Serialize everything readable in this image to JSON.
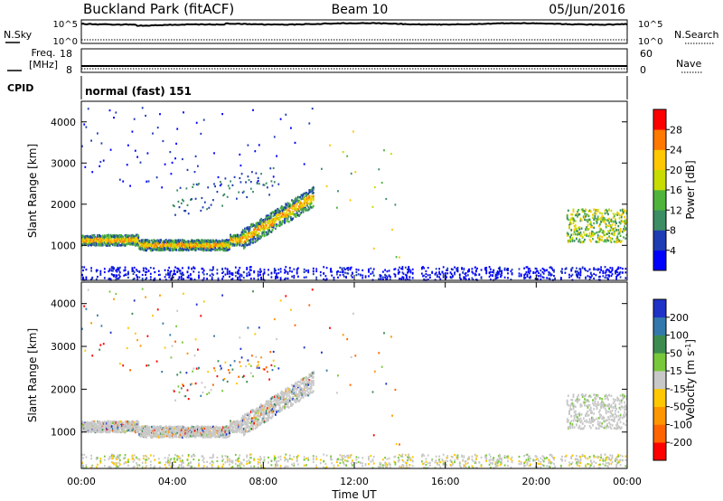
{
  "header": {
    "station": "Buckland Park (fitACF)",
    "beam": "Beam 10",
    "date": "05/Jun/2016"
  },
  "summary": {
    "nsky_label": "N.Sky",
    "nsky_ticks": [
      "10^5",
      "10^0"
    ],
    "nsearch_label": "N.Search",
    "nsearch_ticks": [
      "10^5",
      "10^0"
    ],
    "freq_label_1": "Freq.",
    "freq_label_2": "[MHz]",
    "freq_ticks": [
      "18",
      "8"
    ],
    "nave_label": "Nave",
    "nave_ticks": [
      "60",
      "0"
    ],
    "cpid_label": "CPID",
    "cpid_text": "normal (fast) 151"
  },
  "colorbars": {
    "power": {
      "label": "Power [dB]",
      "ticks": [
        "4",
        "8",
        "12",
        "16",
        "20",
        "24",
        "28"
      ],
      "colors": [
        "#0000ff",
        "#1e3cb4",
        "#3c8c64",
        "#50b43c",
        "#c8dc00",
        "#ffc800",
        "#ff7800",
        "#ff0000"
      ]
    },
    "velocity": {
      "label": "Velocity [m s",
      "label_sup": "-1",
      "label_close": "]",
      "ticks": [
        "-200",
        "-100",
        "-50",
        "-15",
        "15",
        "50",
        "100",
        "200"
      ],
      "colors": [
        "#ff0000",
        "#ff6400",
        "#ff9600",
        "#ffc800",
        "#c8c8c8",
        "#78c83c",
        "#3c8c50",
        "#3278aa",
        "#1e32c8"
      ]
    }
  },
  "chart_data": [
    {
      "type": "heatmap",
      "quantity": "power",
      "xlabel": "",
      "ylabel": "Slant Range [km]",
      "xlim": [
        0,
        24
      ],
      "ylim": [
        150,
        4500
      ],
      "yticks": [
        1000,
        2000,
        3000,
        4000
      ],
      "ytick_labels": [
        "1000",
        "2000",
        "3000",
        "4000"
      ]
    },
    {
      "type": "heatmap",
      "quantity": "velocity",
      "xlabel": "Time UT",
      "ylabel": "Slant Range [km]",
      "xlim": [
        0,
        24
      ],
      "ylim": [
        150,
        4500
      ],
      "xticks": [
        0,
        4,
        8,
        12,
        16,
        20,
        24
      ],
      "xtick_labels": [
        "00:00",
        "04:00",
        "08:00",
        "12:00",
        "16:00",
        "20:00",
        "00:00"
      ],
      "yticks": [
        1000,
        2000,
        3000,
        4000
      ],
      "ytick_labels": [
        "1000",
        "2000",
        "3000",
        "4000"
      ]
    }
  ]
}
